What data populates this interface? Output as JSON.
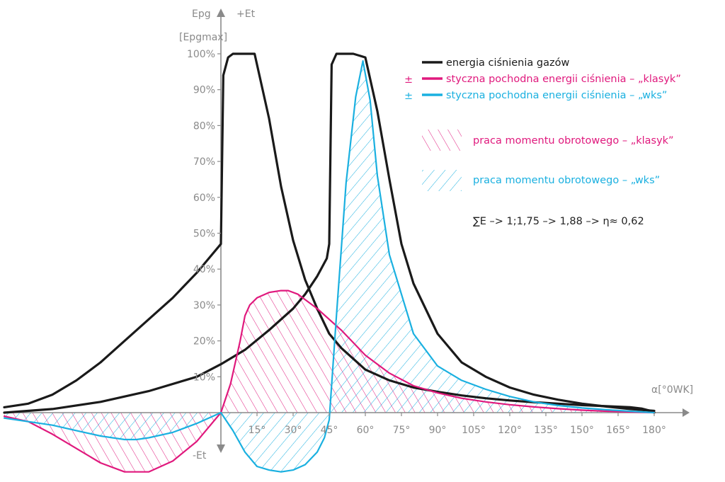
{
  "chart_data": {
    "type": "line",
    "y_axis_label_top": "Epg",
    "y_axis_unit": "[Epgmax]",
    "pos_axis_label": "+Et",
    "neg_axis_label": "-Et",
    "x_axis_label": "α[°0WK]",
    "y_ticks": [
      "10%",
      "20%",
      "30%",
      "40%",
      "50%",
      "60%",
      "70%",
      "80%",
      "90%",
      "100%"
    ],
    "x_ticks": [
      "15°",
      "30°",
      "45°",
      "60°",
      "75°",
      "90°",
      "105°",
      "120°",
      "135°",
      "150°",
      "165°",
      "180°"
    ],
    "xlim": [
      -90,
      180
    ],
    "ylim": [
      -17,
      100
    ],
    "series": [
      {
        "name": "energia ciśnienia gazów",
        "color": "#1a1a1a",
        "x": [
          -90,
          -80,
          -70,
          -60,
          -50,
          -40,
          -30,
          -20,
          -10,
          -5,
          0,
          1,
          3,
          5,
          10,
          14,
          20,
          25,
          30,
          35,
          40,
          45,
          50,
          55,
          60,
          70,
          80,
          90,
          100,
          110,
          120,
          130,
          140,
          150,
          160,
          170,
          175,
          178,
          180
        ],
        "y": [
          1.5,
          2.5,
          5,
          9,
          14,
          20,
          26,
          32,
          39,
          43,
          47,
          94,
          99,
          100,
          100,
          100,
          82,
          63,
          48,
          37,
          29,
          22,
          18,
          15,
          12,
          9,
          7,
          5.8,
          4.8,
          4,
          3.4,
          2.9,
          2.5,
          2.1,
          1.8,
          1.5,
          1.1,
          0.6,
          0
        ]
      },
      {
        "name": "energia ciśnienia gazów",
        "color": "#1a1a1a",
        "x": [
          -90,
          -70,
          -50,
          -30,
          -10,
          0,
          10,
          20,
          30,
          35,
          40,
          44,
          45,
          46,
          48,
          55,
          60,
          65,
          70,
          75,
          80,
          90,
          100,
          110,
          120,
          130,
          140,
          150,
          160,
          170,
          180
        ],
        "y": [
          0,
          1,
          3,
          6,
          10,
          13.5,
          17.5,
          23,
          29,
          33,
          38,
          43,
          47,
          97,
          100,
          100,
          99,
          84,
          65,
          47,
          36,
          22,
          14,
          10,
          7,
          5,
          3.6,
          2.5,
          1.7,
          1,
          0.5
        ]
      },
      {
        "name": "styczna pochodna energii ciśnienia – „klasyk”",
        "color": "#e0197d",
        "x": [
          -90,
          -80,
          -70,
          -60,
          -50,
          -40,
          -30,
          -20,
          -10,
          0,
          4,
          8,
          10,
          12,
          15,
          20,
          25,
          28,
          32,
          40,
          50,
          60,
          70,
          80,
          90,
          100,
          110,
          120,
          130,
          140,
          150,
          160,
          170,
          180
        ],
        "y": [
          -1,
          -2.5,
          -6,
          -10,
          -14,
          -16.5,
          -16.5,
          -13.5,
          -8,
          0,
          8,
          20,
          27,
          30,
          32,
          33.5,
          34,
          34,
          33,
          29,
          23,
          16,
          11,
          7.5,
          5.5,
          4,
          3,
          2.2,
          1.6,
          1.1,
          0.7,
          0.4,
          0.2,
          0
        ]
      },
      {
        "name": "styczna pochodna energii ciśnienia – „wks”",
        "color": "#1ab0e0",
        "x": [
          -90,
          -80,
          -70,
          -60,
          -50,
          -40,
          -35,
          -30,
          -20,
          -10,
          0,
          5,
          10,
          15,
          20,
          25,
          30,
          35,
          40,
          43,
          45,
          48,
          52,
          56,
          59,
          62,
          65,
          70,
          80,
          90,
          100,
          110,
          120,
          130,
          140,
          150,
          160,
          170,
          180
        ],
        "y": [
          -1.5,
          -2.5,
          -3.5,
          -5,
          -6.5,
          -7.5,
          -7.5,
          -7,
          -5.5,
          -3,
          0,
          -5,
          -11,
          -15,
          -16,
          -16.5,
          -16,
          -14.5,
          -11,
          -7,
          -2,
          27,
          64,
          88,
          98,
          87,
          66,
          44,
          22,
          13,
          9,
          6.5,
          4.5,
          3,
          2,
          1.3,
          0.8,
          0.4,
          0
        ]
      }
    ],
    "legend": [
      {
        "marker": "",
        "label": "energia ciśnienia gazów",
        "color": "#1a1a1a"
      },
      {
        "marker": "±",
        "label": "styczna pochodna energii ciśnienia – „klasyk”",
        "color": "#e0197d"
      },
      {
        "marker": "±",
        "label": "styczna pochodna energii ciśnienia – „wks”",
        "color": "#1ab0e0"
      },
      {
        "label": "praca momentu obrotowego – „klasyk”",
        "color": "#e0197d"
      },
      {
        "label": "praca momentu obrotowego – „wks”",
        "color": "#1ab0e0"
      }
    ],
    "annotation": "∑E –> 1;1,75 –> 1,88 –> η≈ 0,62",
    "legend_position": "top-right",
    "grid": false
  }
}
